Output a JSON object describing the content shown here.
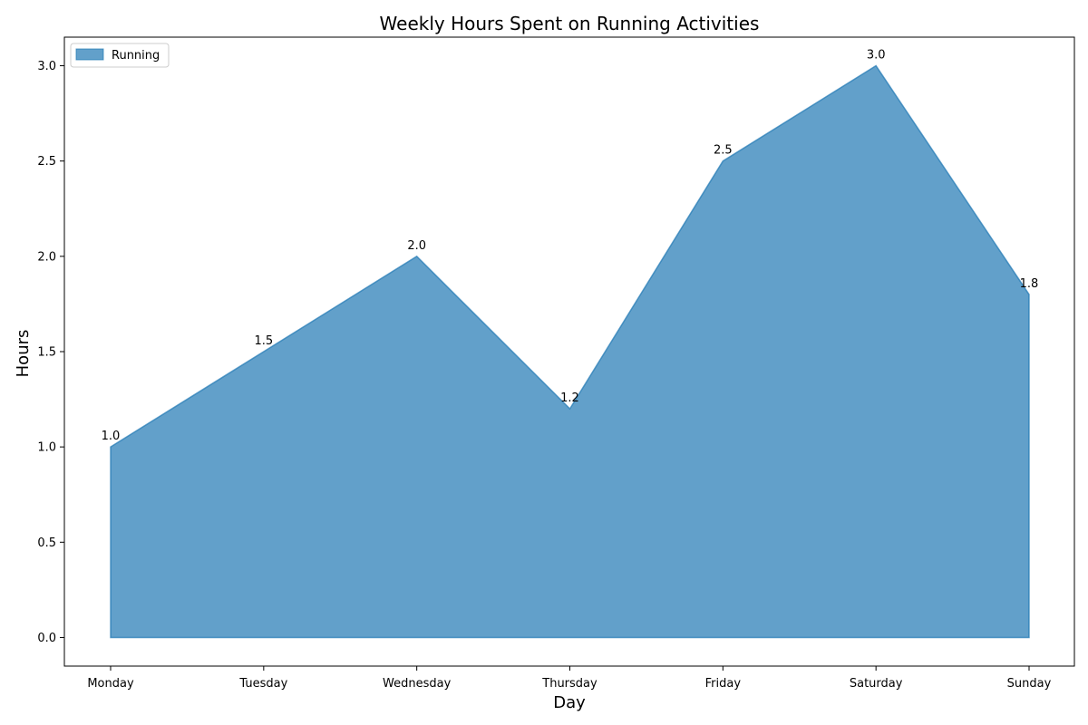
{
  "chart_data": {
    "type": "area",
    "title": "Weekly Hours Spent on Running Activities",
    "xlabel": "Day",
    "ylabel": "Hours",
    "categories": [
      "Monday",
      "Tuesday",
      "Wednesday",
      "Thursday",
      "Friday",
      "Saturday",
      "Sunday"
    ],
    "series": [
      {
        "name": "Running",
        "values": [
          1.0,
          1.5,
          2.0,
          1.2,
          2.5,
          3.0,
          1.8
        ],
        "color": "#1f77b4"
      }
    ],
    "data_labels": [
      "1.0",
      "1.5",
      "2.0",
      "1.2",
      "2.5",
      "3.0",
      "1.8"
    ],
    "ylim": [
      -0.15,
      3.15
    ],
    "yticks": [
      0.0,
      0.5,
      1.0,
      1.5,
      2.0,
      2.5,
      3.0
    ],
    "ytick_labels": [
      "0.0",
      "0.5",
      "1.0",
      "1.5",
      "2.0",
      "2.5",
      "3.0"
    ],
    "fill_opacity": 0.7,
    "grid": false,
    "legend": {
      "placement": "top-left",
      "entries": [
        "Running"
      ]
    }
  }
}
